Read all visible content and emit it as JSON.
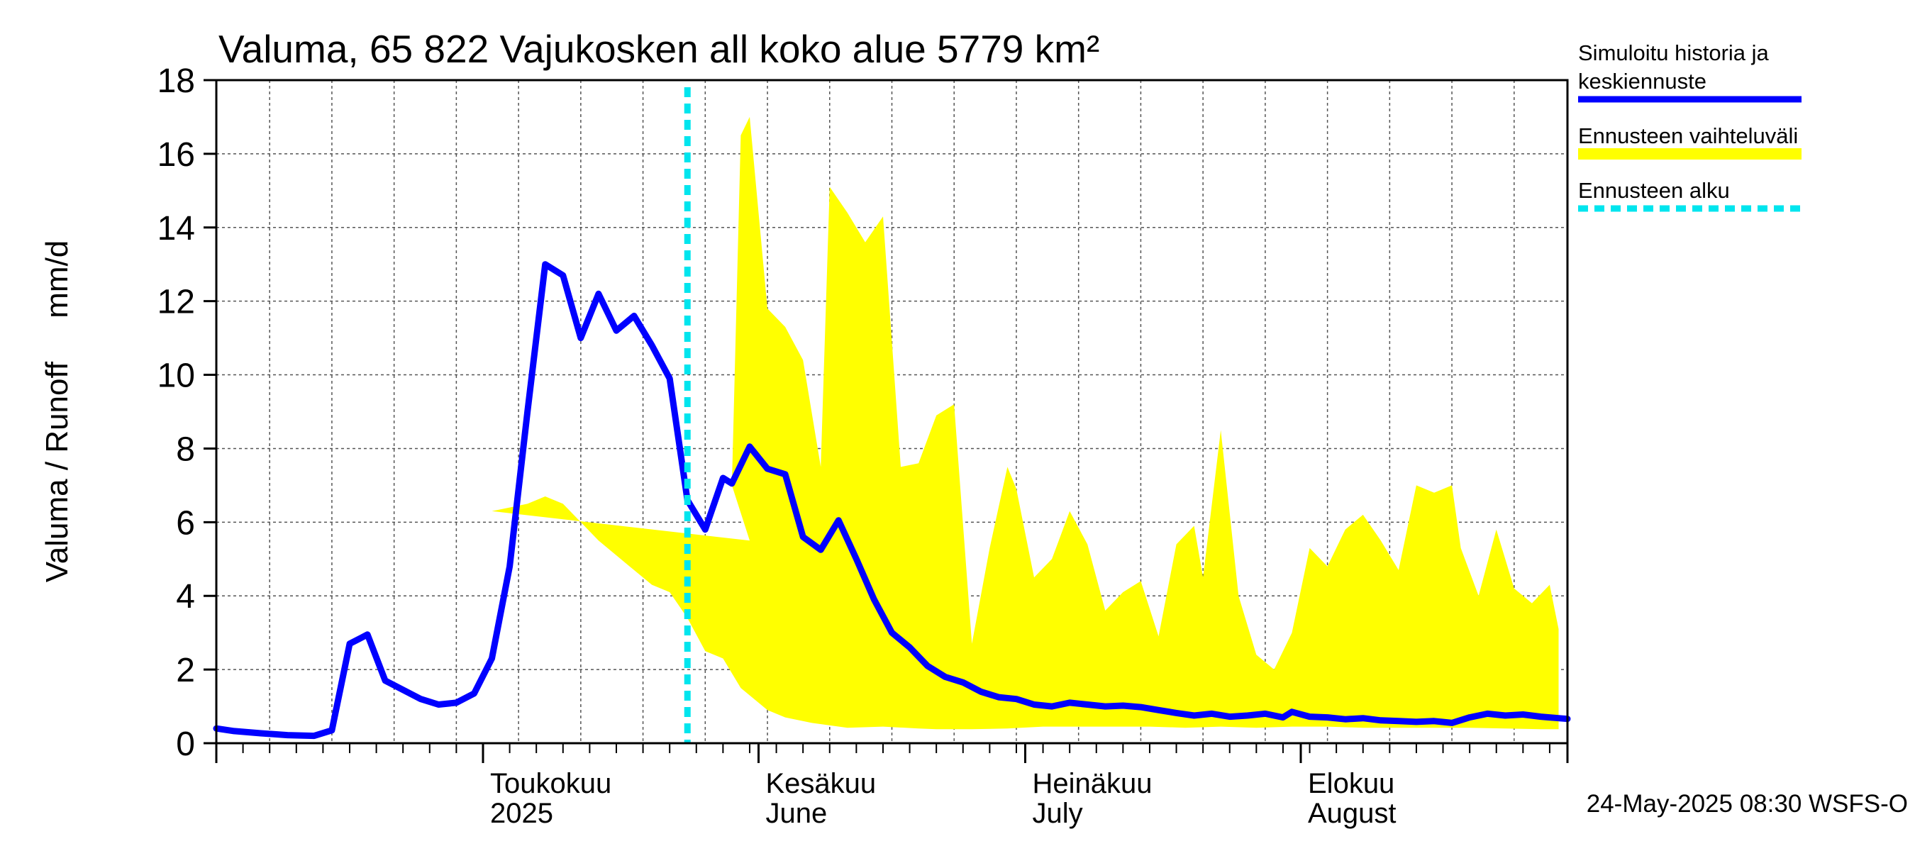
{
  "chart_data": {
    "type": "area",
    "title": "Valuma, 65 822 Vajukosken all koko alue 5779 km²",
    "ylabel": "Valuma / Runoff     mm/d",
    "xlabel": "",
    "ylim": [
      0,
      18
    ],
    "yticks": [
      0,
      2,
      4,
      6,
      8,
      10,
      12,
      14,
      16,
      18
    ],
    "xlim": [
      "2025-04-01",
      "2025-08-31"
    ],
    "grid": true,
    "legend_position": "right",
    "month_labels": [
      {
        "date": "2025-05-01",
        "line1": "Toukokuu",
        "line2": "2025"
      },
      {
        "date": "2025-06-01",
        "line1": "Kesäkuu",
        "line2": "June"
      },
      {
        "date": "2025-07-01",
        "line1": "Heinäkuu",
        "line2": "July"
      },
      {
        "date": "2025-08-01",
        "line1": "Elokuu",
        "line2": "August"
      }
    ],
    "forecast_start": "2025-05-24",
    "series": [
      {
        "name": "Simuloitu historia ja keskiennuste",
        "color": "#0000ff",
        "kind": "line",
        "points": [
          [
            "2025-04-01",
            0.4
          ],
          [
            "2025-04-03",
            0.33
          ],
          [
            "2025-04-06",
            0.27
          ],
          [
            "2025-04-09",
            0.22
          ],
          [
            "2025-04-12",
            0.2
          ],
          [
            "2025-04-14",
            0.35
          ],
          [
            "2025-04-16",
            2.7
          ],
          [
            "2025-04-18",
            2.95
          ],
          [
            "2025-04-20",
            1.7
          ],
          [
            "2025-04-22",
            1.45
          ],
          [
            "2025-04-24",
            1.2
          ],
          [
            "2025-04-26",
            1.05
          ],
          [
            "2025-04-28",
            1.1
          ],
          [
            "2025-04-30",
            1.35
          ],
          [
            "2025-05-02",
            2.3
          ],
          [
            "2025-05-04",
            4.8
          ],
          [
            "2025-05-06",
            9.0
          ],
          [
            "2025-05-08",
            13.0
          ],
          [
            "2025-05-10",
            12.7
          ],
          [
            "2025-05-12",
            11.0
          ],
          [
            "2025-05-14",
            12.2
          ],
          [
            "2025-05-16",
            11.2
          ],
          [
            "2025-05-18",
            11.6
          ],
          [
            "2025-05-20",
            10.8
          ],
          [
            "2025-05-22",
            9.9
          ],
          [
            "2025-05-24",
            6.6
          ],
          [
            "2025-05-26",
            5.8
          ],
          [
            "2025-05-28",
            7.2
          ],
          [
            "2025-05-29",
            7.05
          ],
          [
            "2025-05-31",
            8.05
          ],
          [
            "2025-06-02",
            7.45
          ],
          [
            "2025-06-04",
            7.3
          ],
          [
            "2025-06-06",
            5.6
          ],
          [
            "2025-06-08",
            5.25
          ],
          [
            "2025-06-10",
            6.05
          ],
          [
            "2025-06-12",
            5.0
          ],
          [
            "2025-06-14",
            3.9
          ],
          [
            "2025-06-16",
            3.0
          ],
          [
            "2025-06-18",
            2.6
          ],
          [
            "2025-06-20",
            2.1
          ],
          [
            "2025-06-22",
            1.8
          ],
          [
            "2025-06-24",
            1.65
          ],
          [
            "2025-06-26",
            1.4
          ],
          [
            "2025-06-28",
            1.25
          ],
          [
            "2025-06-30",
            1.2
          ],
          [
            "2025-07-02",
            1.05
          ],
          [
            "2025-07-04",
            1.0
          ],
          [
            "2025-07-06",
            1.1
          ],
          [
            "2025-07-08",
            1.05
          ],
          [
            "2025-07-10",
            1.0
          ],
          [
            "2025-07-12",
            1.02
          ],
          [
            "2025-07-14",
            0.98
          ],
          [
            "2025-07-16",
            0.9
          ],
          [
            "2025-07-18",
            0.82
          ],
          [
            "2025-07-20",
            0.75
          ],
          [
            "2025-07-22",
            0.8
          ],
          [
            "2025-07-24",
            0.72
          ],
          [
            "2025-07-26",
            0.75
          ],
          [
            "2025-07-28",
            0.8
          ],
          [
            "2025-07-30",
            0.7
          ],
          [
            "2025-07-31",
            0.85
          ],
          [
            "2025-08-02",
            0.72
          ],
          [
            "2025-08-04",
            0.7
          ],
          [
            "2025-08-06",
            0.65
          ],
          [
            "2025-08-08",
            0.68
          ],
          [
            "2025-08-10",
            0.62
          ],
          [
            "2025-08-12",
            0.6
          ],
          [
            "2025-08-14",
            0.58
          ],
          [
            "2025-08-16",
            0.6
          ],
          [
            "2025-08-18",
            0.55
          ],
          [
            "2025-08-20",
            0.7
          ],
          [
            "2025-08-22",
            0.8
          ],
          [
            "2025-08-24",
            0.75
          ],
          [
            "2025-08-26",
            0.78
          ],
          [
            "2025-08-28",
            0.72
          ],
          [
            "2025-08-30",
            0.68
          ],
          [
            "2025-08-31",
            0.66
          ]
        ]
      },
      {
        "name": "Ennusteen vaihteluväli",
        "color": "#ffff00",
        "kind": "band",
        "upper": [
          [
            "2025-05-29",
            7.0
          ],
          [
            "2025-05-30",
            16.5
          ],
          [
            "2025-05-31",
            17.0
          ],
          [
            "2025-06-02",
            11.8
          ],
          [
            "2025-06-04",
            11.3
          ],
          [
            "2025-06-06",
            10.4
          ],
          [
            "2025-06-08",
            7.5
          ],
          [
            "2025-06-09",
            15.1
          ],
          [
            "2025-06-11",
            14.4
          ],
          [
            "2025-06-13",
            13.6
          ],
          [
            "2025-06-15",
            14.3
          ],
          [
            "2025-06-17",
            7.5
          ],
          [
            "2025-06-19",
            7.6
          ],
          [
            "2025-06-21",
            8.9
          ],
          [
            "2025-06-23",
            9.2
          ],
          [
            "2025-06-25",
            2.7
          ],
          [
            "2025-06-27",
            5.3
          ],
          [
            "2025-06-29",
            7.5
          ],
          [
            "2025-06-30",
            6.9
          ],
          [
            "2025-07-02",
            4.5
          ],
          [
            "2025-07-04",
            5.0
          ],
          [
            "2025-07-06",
            6.3
          ],
          [
            "2025-07-08",
            5.4
          ],
          [
            "2025-07-10",
            3.6
          ],
          [
            "2025-07-12",
            4.1
          ],
          [
            "2025-07-14",
            4.4
          ],
          [
            "2025-07-16",
            2.9
          ],
          [
            "2025-07-18",
            5.4
          ],
          [
            "2025-07-20",
            5.9
          ],
          [
            "2025-07-21",
            4.5
          ],
          [
            "2025-07-23",
            8.5
          ],
          [
            "2025-07-25",
            4.0
          ],
          [
            "2025-07-27",
            2.4
          ],
          [
            "2025-07-29",
            2.0
          ],
          [
            "2025-07-31",
            3.0
          ],
          [
            "2025-08-02",
            5.3
          ],
          [
            "2025-08-04",
            4.8
          ],
          [
            "2025-08-06",
            5.8
          ],
          [
            "2025-08-08",
            6.2
          ],
          [
            "2025-08-10",
            5.5
          ],
          [
            "2025-08-12",
            4.7
          ],
          [
            "2025-08-14",
            7.0
          ],
          [
            "2025-08-16",
            6.8
          ],
          [
            "2025-08-18",
            7.0
          ],
          [
            "2025-08-19",
            5.3
          ],
          [
            "2025-08-21",
            4.0
          ],
          [
            "2025-08-23",
            5.8
          ],
          [
            "2025-08-25",
            4.2
          ],
          [
            "2025-08-27",
            3.8
          ],
          [
            "2025-08-29",
            4.3
          ],
          [
            "2025-08-30",
            3.1
          ]
        ],
        "lower": [
          [
            "2025-08-30",
            0.38
          ],
          [
            "2025-08-28",
            0.38
          ],
          [
            "2025-08-24",
            0.4
          ],
          [
            "2025-08-20",
            0.42
          ],
          [
            "2025-08-16",
            0.42
          ],
          [
            "2025-08-12",
            0.42
          ],
          [
            "2025-08-08",
            0.42
          ],
          [
            "2025-08-04",
            0.45
          ],
          [
            "2025-07-31",
            0.45
          ],
          [
            "2025-07-27",
            0.42
          ],
          [
            "2025-07-23",
            0.45
          ],
          [
            "2025-07-19",
            0.42
          ],
          [
            "2025-07-15",
            0.45
          ],
          [
            "2025-07-11",
            0.45
          ],
          [
            "2025-07-07",
            0.45
          ],
          [
            "2025-07-03",
            0.45
          ],
          [
            "2025-06-29",
            0.4
          ],
          [
            "2025-06-25",
            0.38
          ],
          [
            "2025-06-21",
            0.38
          ],
          [
            "2025-06-19",
            0.4
          ],
          [
            "2025-06-15",
            0.45
          ],
          [
            "2025-06-11",
            0.42
          ],
          [
            "2025-06-07",
            0.55
          ],
          [
            "2025-06-04",
            0.7
          ],
          [
            "2025-06-02",
            0.9
          ],
          [
            "2025-06-01",
            1.1
          ],
          [
            "2025-05-30",
            1.5
          ],
          [
            "2025-05-28",
            2.3
          ],
          [
            "2025-05-26",
            2.5
          ],
          [
            "2025-05-24",
            3.4
          ],
          [
            "2025-05-22",
            4.1
          ],
          [
            "2025-05-20",
            4.3
          ],
          [
            "2025-05-18",
            4.7
          ],
          [
            "2025-05-16",
            5.1
          ],
          [
            "2025-05-14",
            5.5
          ],
          [
            "2025-05-12",
            6.0
          ],
          [
            "2025-05-10",
            6.5
          ],
          [
            "2025-05-08",
            6.7
          ],
          [
            "2025-05-06",
            6.5
          ],
          [
            "2025-05-04",
            6.4
          ],
          [
            "2025-05-02",
            6.3
          ],
          [
            "2025-05-31",
            5.5
          ],
          [
            "2025-05-29",
            7.0
          ]
        ]
      },
      {
        "name": "Ennusteen alku",
        "color": "#00e5ee",
        "kind": "vline"
      }
    ],
    "legend": [
      {
        "lines": [
          "Simuloitu historia ja",
          "keskiennuste"
        ],
        "color": "#0000ff",
        "style": "solid"
      },
      {
        "lines": [
          "Ennusteen vaihteluväli"
        ],
        "color": "#ffff00",
        "style": "solid"
      },
      {
        "lines": [
          "Ennusteen alku"
        ],
        "color": "#00e5ee",
        "style": "dashed"
      }
    ],
    "footer": "24-May-2025 08:30 WSFS-O"
  }
}
